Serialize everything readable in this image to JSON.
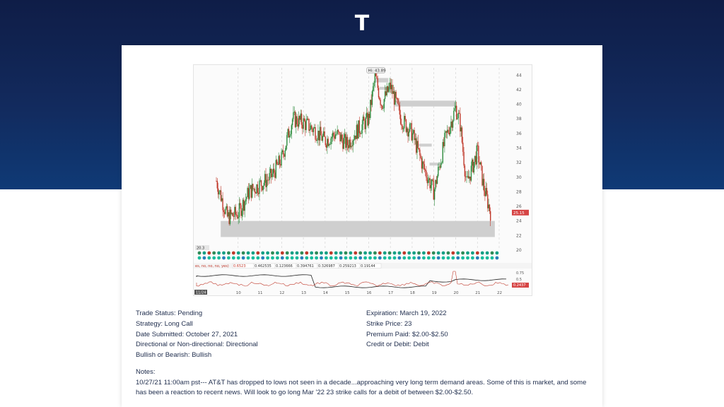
{
  "page": {
    "ticker": "T"
  },
  "chart": {
    "hi_label": "Hi: 43.89",
    "last_price": "25.15",
    "low_marker": "20.3",
    "indicator_flags": "es, no, no, no, yes)",
    "indicator_values": [
      "0.6523",
      "0.462535",
      "0.123666",
      "0.394761",
      "0.326987",
      "0.259213",
      "0.19144"
    ],
    "lower_current": "0.2437",
    "y_ticks": [
      "44",
      "42",
      "40",
      "38",
      "36",
      "34",
      "32",
      "30",
      "28",
      "26",
      "24",
      "22",
      "20"
    ],
    "lower_ticks": [
      "0.75",
      "0.5",
      "0.25"
    ],
    "x_ticks": [
      "11/24",
      "10",
      "11",
      "12",
      "13",
      "14",
      "15",
      "16",
      "17",
      "18",
      "19",
      "20",
      "21",
      "22"
    ],
    "colors": {
      "up": "#2e8b3d",
      "down": "#c0392b",
      "price_tag": "#d64545"
    }
  },
  "details": {
    "left": [
      "Trade Status: Pending",
      "Strategy: Long Call",
      "Date Submitted: October 27, 2021",
      "Directional or Non-directional: Directional",
      "Bullish or Bearish: Bullish"
    ],
    "right": [
      "Expiration: March 19, 2022",
      "Strike Price: 23",
      "Premium Paid: $2.00-$2.50",
      "Credit or Debit: Debit"
    ]
  },
  "notes": {
    "title": "Notes:",
    "text": "10/27/21 11:00am pst--- AT&T has dropped to lows not seen in a decade...approaching very long term demand areas. Some of this is market, and some has been a reaction to recent news. Will look to go long Mar '22 23 strike calls for a debit of between $2.00-$2.50."
  },
  "chart_data": {
    "type": "candlestick",
    "title": "",
    "x_ticks": [
      "11/24",
      "10",
      "11",
      "12",
      "13",
      "14",
      "15",
      "16",
      "17",
      "18",
      "19",
      "20",
      "21",
      "22"
    ],
    "ylim": [
      20,
      45
    ],
    "highlight": {
      "high": 43.89,
      "last": 25.15
    },
    "x": [
      9.0,
      9.5,
      10,
      10.5,
      11,
      11.5,
      12,
      12.5,
      13,
      13.5,
      14,
      14.5,
      15,
      15.5,
      16,
      16.3,
      16.6,
      17,
      17.5,
      18,
      18.5,
      19,
      19.5,
      20,
      20.2,
      20.5,
      21,
      21.3,
      21.6
    ],
    "close": [
      29.5,
      24.5,
      25.0,
      28.0,
      29.0,
      30.0,
      32.5,
      38.0,
      37.5,
      36.5,
      35.0,
      36.0,
      34.5,
      36.5,
      38.0,
      43.8,
      40.0,
      42.5,
      38.0,
      36.0,
      31.5,
      28.0,
      35.0,
      39.5,
      37.5,
      29.0,
      33.5,
      28.5,
      25.2
    ]
  }
}
